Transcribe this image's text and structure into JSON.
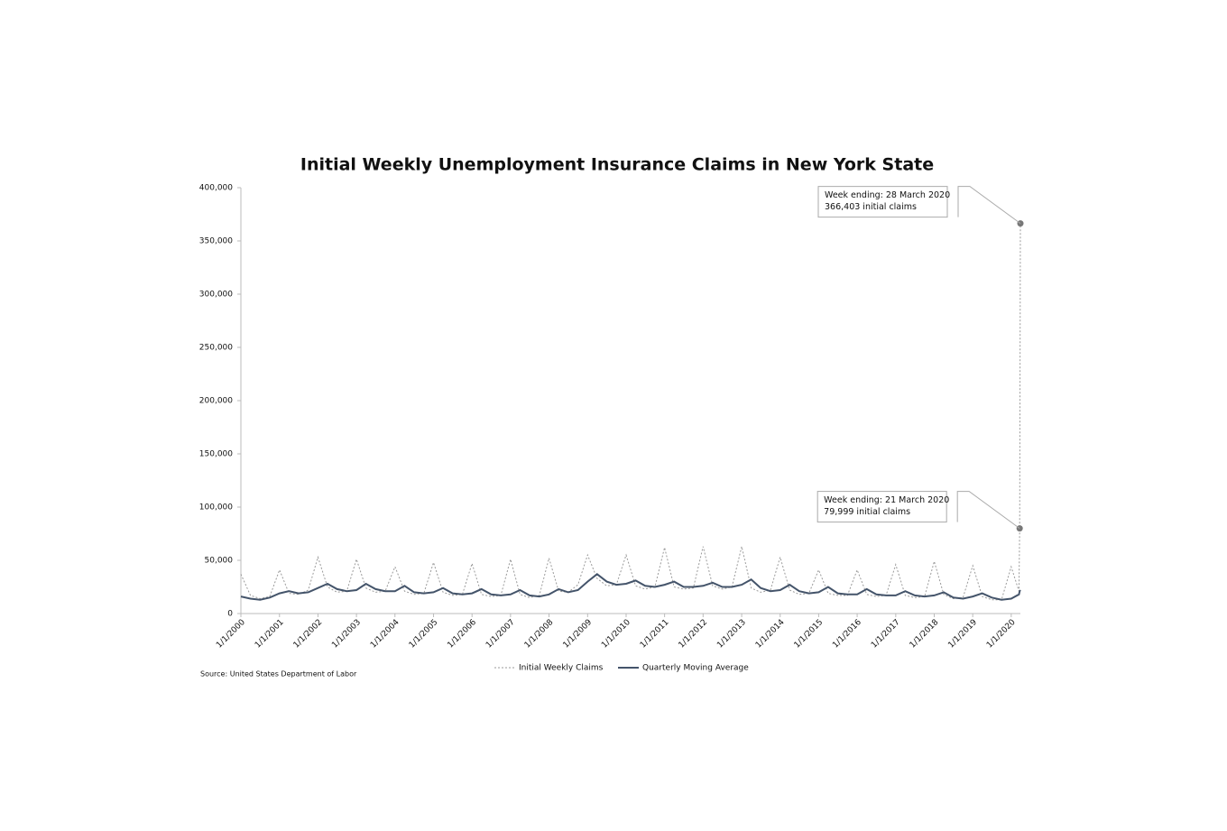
{
  "chart_data": {
    "type": "line",
    "title": "Initial Weekly Unemployment Insurance Claims in New York State",
    "source": "Source: United States Department of Labor",
    "x": [
      "1/1/2000",
      "4/1/2000",
      "7/1/2000",
      "10/1/2000",
      "1/1/2001",
      "4/1/2001",
      "7/1/2001",
      "10/1/2001",
      "1/1/2002",
      "4/1/2002",
      "7/1/2002",
      "10/1/2002",
      "1/1/2003",
      "4/1/2003",
      "7/1/2003",
      "10/1/2003",
      "1/1/2004",
      "4/1/2004",
      "7/1/2004",
      "10/1/2004",
      "1/1/2005",
      "4/1/2005",
      "7/1/2005",
      "10/1/2005",
      "1/1/2006",
      "4/1/2006",
      "7/1/2006",
      "10/1/2006",
      "1/1/2007",
      "4/1/2007",
      "7/1/2007",
      "10/1/2007",
      "1/1/2008",
      "4/1/2008",
      "7/1/2008",
      "10/1/2008",
      "1/1/2009",
      "4/1/2009",
      "7/1/2009",
      "10/1/2009",
      "1/1/2010",
      "4/1/2010",
      "7/1/2010",
      "10/1/2010",
      "1/1/2011",
      "4/1/2011",
      "7/1/2011",
      "10/1/2011",
      "1/1/2012",
      "4/1/2012",
      "7/1/2012",
      "10/1/2012",
      "1/1/2013",
      "4/1/2013",
      "7/1/2013",
      "10/1/2013",
      "1/1/2014",
      "4/1/2014",
      "7/1/2014",
      "10/1/2014",
      "1/1/2015",
      "4/1/2015",
      "7/1/2015",
      "10/1/2015",
      "1/1/2016",
      "4/1/2016",
      "7/1/2016",
      "10/1/2016",
      "1/1/2017",
      "4/1/2017",
      "7/1/2017",
      "10/1/2017",
      "1/1/2018",
      "4/1/2018",
      "7/1/2018",
      "10/1/2018",
      "1/1/2019",
      "4/1/2019",
      "7/1/2019",
      "10/1/2019",
      "1/1/2020",
      "3/14/2020",
      "3/21/2020",
      "3/28/2020"
    ],
    "series": [
      {
        "name": "Initial Weekly Claims",
        "color": "#9a9a9a",
        "dash": true,
        "values": [
          37000,
          17000,
          14000,
          16000,
          41000,
          19000,
          18000,
          22000,
          53000,
          25000,
          20000,
          21000,
          51000,
          24000,
          20000,
          21000,
          44000,
          21000,
          18000,
          19000,
          48000,
          20000,
          17000,
          18000,
          47000,
          18000,
          16000,
          17000,
          51000,
          18000,
          15000,
          17000,
          52000,
          21000,
          20000,
          27000,
          55000,
          33000,
          26000,
          27000,
          55000,
          26000,
          23000,
          25000,
          62000,
          25000,
          23000,
          24000,
          63000,
          26000,
          23000,
          25000,
          63000,
          24000,
          20000,
          22000,
          53000,
          22000,
          18000,
          19000,
          41000,
          19000,
          17000,
          17000,
          41000,
          18000,
          16000,
          17000,
          46000,
          17000,
          15000,
          16000,
          49000,
          18000,
          14000,
          15000,
          45000,
          16000,
          13000,
          13000,
          44000,
          21000,
          79999,
          366403
        ]
      },
      {
        "name": "Quarterly Moving Average",
        "color": "#44546a",
        "dash": false,
        "values": [
          16000,
          14000,
          13000,
          15000,
          19000,
          21000,
          19000,
          20000,
          24000,
          28000,
          23000,
          21000,
          22000,
          28000,
          23000,
          21000,
          21000,
          26000,
          20000,
          19000,
          20000,
          24000,
          19000,
          18000,
          19000,
          23000,
          18000,
          17000,
          18000,
          22000,
          17000,
          16000,
          18000,
          23000,
          20000,
          22000,
          30000,
          37000,
          30000,
          27000,
          28000,
          31000,
          26000,
          25000,
          27000,
          30000,
          25000,
          25000,
          26000,
          29000,
          25000,
          25000,
          27000,
          32000,
          24000,
          21000,
          22000,
          27000,
          21000,
          19000,
          20000,
          25000,
          19000,
          18000,
          18000,
          23000,
          18000,
          17000,
          17000,
          21000,
          17000,
          16000,
          17000,
          20000,
          15000,
          14000,
          16000,
          19000,
          15000,
          13000,
          14000,
          18000,
          21000,
          22000
        ]
      }
    ],
    "xlim": [
      "1/1/2000",
      "3/28/2020"
    ],
    "xticks": [
      "1/1/2000",
      "1/1/2001",
      "1/1/2002",
      "1/1/2003",
      "1/1/2004",
      "1/1/2005",
      "1/1/2006",
      "1/1/2007",
      "1/1/2008",
      "1/1/2009",
      "1/1/2010",
      "1/1/2011",
      "1/1/2012",
      "1/1/2013",
      "1/1/2014",
      "1/1/2015",
      "1/1/2016",
      "1/1/2017",
      "1/1/2018",
      "1/1/2019",
      "1/1/2020"
    ],
    "ylim": [
      0,
      400000
    ],
    "yticks": [
      0,
      {
        "value": 50000,
        "label": "50,000"
      },
      {
        "value": 100000,
        "label": "100,000"
      },
      {
        "value": 150000,
        "label": "150,000"
      },
      {
        "value": 200000,
        "label": "200,000"
      },
      {
        "value": 250000,
        "label": "250,000"
      },
      {
        "value": 300000,
        "label": "300,000"
      },
      {
        "value": 350000,
        "label": "350,000"
      },
      {
        "value": 400000,
        "label": "400,000"
      }
    ],
    "legend": "bottom",
    "annotations": [
      {
        "x": "3/28/2020",
        "y": 366403,
        "text": [
          "Week ending: 28 March 2020",
          "366,403 initial claims"
        ]
      },
      {
        "x": "3/21/2020",
        "y": 79999,
        "text": [
          "Week ending: 21 March 2020",
          "79,999 initial claims"
        ]
      }
    ]
  }
}
